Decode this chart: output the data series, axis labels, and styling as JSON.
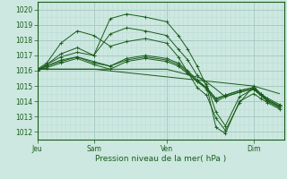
{
  "title": "Pression niveau de la mer( hPa )",
  "bg_color": "#cce8e0",
  "grid_color_major": "#a8ccc4",
  "grid_color_minor": "#bcddd6",
  "line_color": "#1a5c1a",
  "ylim": [
    1011.5,
    1020.5
  ],
  "yticks": [
    1012,
    1013,
    1014,
    1015,
    1016,
    1017,
    1018,
    1019,
    1020
  ],
  "xtick_labels": [
    "Jeu",
    "Sam",
    "Ven",
    "Dim"
  ],
  "xtick_positions": [
    0.0,
    0.24,
    0.55,
    0.92
  ],
  "xlim": [
    0.0,
    1.05
  ],
  "lines": [
    {
      "x": [
        0.0,
        0.04,
        0.1,
        0.17,
        0.24,
        0.31,
        0.38,
        0.46,
        0.55,
        0.6,
        0.64,
        0.68,
        0.72,
        0.76,
        0.8,
        0.86,
        0.92,
        0.95,
        0.98,
        1.03
      ],
      "y": [
        1016.0,
        1016.4,
        1017.1,
        1017.5,
        1017.0,
        1019.4,
        1019.7,
        1019.5,
        1019.2,
        1018.3,
        1017.4,
        1016.3,
        1015.0,
        1012.3,
        1011.9,
        1014.0,
        1014.5,
        1014.2,
        1013.9,
        1013.5
      ],
      "marker": "+"
    },
    {
      "x": [
        0.0,
        0.04,
        0.1,
        0.17,
        0.24,
        0.31,
        0.38,
        0.46,
        0.55,
        0.6,
        0.64,
        0.68,
        0.72,
        0.76,
        0.8,
        0.86,
        0.92,
        0.95,
        0.98,
        1.03
      ],
      "y": [
        1016.0,
        1016.4,
        1016.9,
        1017.2,
        1017.0,
        1018.4,
        1018.8,
        1018.6,
        1018.3,
        1017.4,
        1016.7,
        1015.7,
        1015.1,
        1013.3,
        1012.4,
        1014.3,
        1014.8,
        1014.4,
        1014.1,
        1013.7
      ],
      "marker": "+"
    },
    {
      "x": [
        0.0,
        0.04,
        0.1,
        0.17,
        0.24,
        0.31,
        0.38,
        0.46,
        0.55,
        0.6,
        0.64,
        0.68,
        0.72,
        0.76,
        0.8,
        0.86,
        0.92,
        0.95,
        0.98,
        1.03
      ],
      "y": [
        1016.1,
        1016.5,
        1017.8,
        1018.6,
        1018.3,
        1017.6,
        1017.9,
        1018.1,
        1017.8,
        1016.9,
        1015.9,
        1014.9,
        1014.4,
        1012.9,
        1012.1,
        1013.9,
        1015.0,
        1014.5,
        1014.2,
        1013.8
      ],
      "marker": "+"
    },
    {
      "x": [
        0.0,
        0.04,
        0.1,
        0.17,
        0.24,
        0.31,
        0.38,
        0.46,
        0.55,
        0.6,
        0.64,
        0.68,
        0.72,
        0.76,
        0.8,
        0.86,
        0.92,
        0.95,
        0.98,
        1.03
      ],
      "y": [
        1016.0,
        1016.3,
        1016.7,
        1016.9,
        1016.6,
        1016.3,
        1016.8,
        1017.0,
        1016.8,
        1016.5,
        1016.0,
        1015.4,
        1014.9,
        1014.2,
        1014.4,
        1014.7,
        1014.9,
        1014.5,
        1014.1,
        1013.7
      ],
      "marker": "+"
    },
    {
      "x": [
        0.0,
        0.04,
        0.1,
        0.17,
        0.24,
        0.31,
        0.38,
        0.46,
        0.55,
        0.6,
        0.64,
        0.68,
        0.72,
        0.76,
        0.8,
        0.86,
        0.92,
        0.95,
        0.98,
        1.03
      ],
      "y": [
        1016.0,
        1016.2,
        1016.5,
        1016.8,
        1016.4,
        1016.1,
        1016.6,
        1016.8,
        1016.6,
        1016.3,
        1015.8,
        1015.3,
        1014.8,
        1014.0,
        1014.3,
        1014.6,
        1014.8,
        1014.4,
        1014.0,
        1013.6
      ],
      "marker": "+"
    },
    {
      "x": [
        0.0,
        0.04,
        0.1,
        0.17,
        0.24,
        0.31,
        0.38,
        0.46,
        0.55,
        0.6,
        0.64,
        0.68,
        0.72,
        0.76,
        0.8,
        0.86,
        0.92,
        0.95,
        0.98,
        1.03
      ],
      "y": [
        1016.1,
        1016.3,
        1016.6,
        1016.9,
        1016.5,
        1016.3,
        1016.7,
        1016.9,
        1016.7,
        1016.4,
        1015.9,
        1015.3,
        1014.9,
        1014.1,
        1014.4,
        1014.7,
        1014.9,
        1014.5,
        1014.1,
        1013.7
      ],
      "marker": "+"
    },
    {
      "x": [
        0.0,
        0.24,
        0.55,
        0.7,
        0.76,
        0.8,
        0.86,
        0.92,
        0.95,
        0.98,
        1.03
      ],
      "y": [
        1016.1,
        1016.1,
        1016.1,
        1015.5,
        1014.8,
        1014.3,
        1014.6,
        1014.8,
        1014.4,
        1014.0,
        1013.6
      ],
      "marker": null
    },
    {
      "x": [
        0.0,
        0.24,
        0.92,
        1.03
      ],
      "y": [
        1016.1,
        1016.1,
        1015.0,
        1014.5
      ],
      "marker": null
    }
  ]
}
